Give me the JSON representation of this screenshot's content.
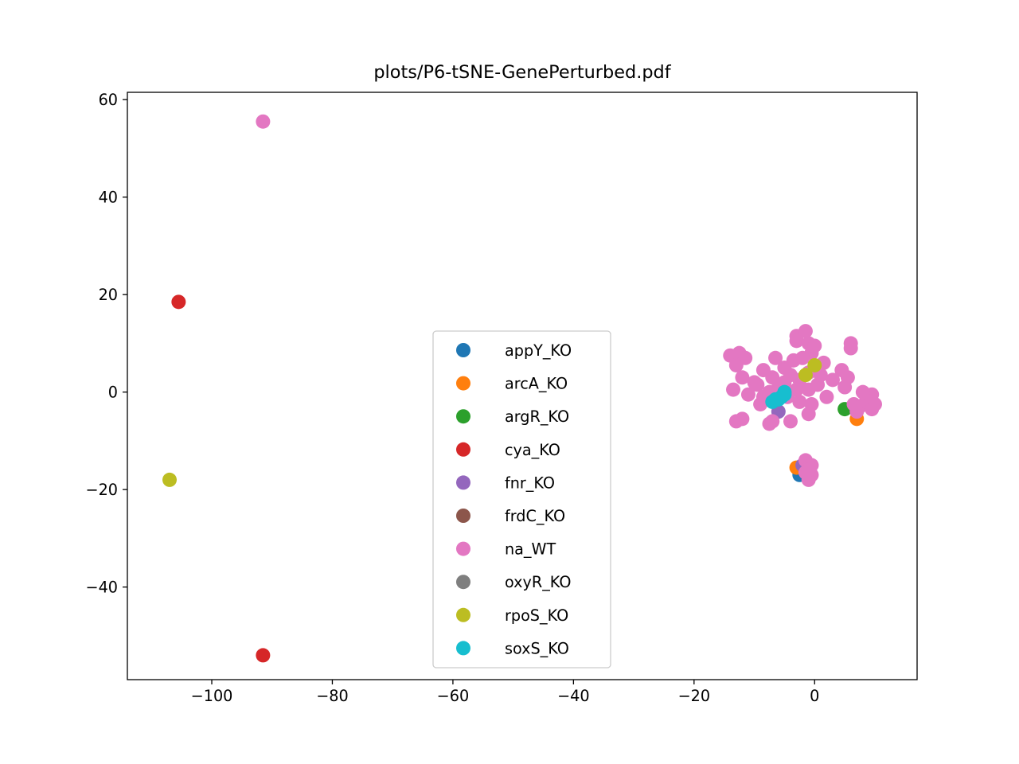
{
  "chart_data": {
    "type": "scatter",
    "title": "plots/P6-tSNE-GenePerturbed.pdf",
    "xlabel": "",
    "ylabel": "",
    "xlim": [
      -114,
      17
    ],
    "ylim": [
      -59,
      61.5
    ],
    "x_ticks": [
      -100,
      -80,
      -60,
      -40,
      -20,
      0
    ],
    "x_tick_labels": [
      "−100",
      "−80",
      "−60",
      "−40",
      "−20",
      "0"
    ],
    "y_ticks": [
      60,
      40,
      20,
      0,
      -20,
      -40
    ],
    "y_tick_labels": [
      "60",
      "40",
      "20",
      "0",
      "−20",
      "−40"
    ],
    "grid": false,
    "legend_position": "lower center",
    "series": [
      {
        "name": "appY_KO",
        "color": "#1f77b4",
        "points": [
          [
            -2.5,
            -17
          ],
          [
            -2,
            -16
          ]
        ]
      },
      {
        "name": "arcA_KO",
        "color": "#ff7f0e",
        "points": [
          [
            -3,
            -15.5
          ],
          [
            7,
            -5.5
          ]
        ]
      },
      {
        "name": "argR_KO",
        "color": "#2ca02c",
        "points": [
          [
            5,
            -3.5
          ]
        ]
      },
      {
        "name": "cya_KO",
        "color": "#d62728",
        "points": [
          [
            -105.5,
            18.5
          ],
          [
            -91.5,
            -54
          ]
        ]
      },
      {
        "name": "fnr_KO",
        "color": "#9467bd",
        "points": [
          [
            -6,
            -4
          ],
          [
            -2,
            -15
          ]
        ]
      },
      {
        "name": "frdC_KO",
        "color": "#8c564b",
        "points": []
      },
      {
        "name": "na_WT",
        "color": "#e377c2",
        "points": [
          [
            -91.5,
            55.5
          ],
          [
            -14,
            7.5
          ],
          [
            -12.5,
            8
          ],
          [
            -11.5,
            7
          ],
          [
            -13,
            5.5
          ],
          [
            -12,
            3
          ],
          [
            -13.5,
            0.5
          ],
          [
            -11,
            -0.5
          ],
          [
            -10,
            2
          ],
          [
            -12,
            -5.5
          ],
          [
            -13,
            -6
          ],
          [
            -9.5,
            1.5
          ],
          [
            -8.5,
            4.5
          ],
          [
            -8.5,
            -1
          ],
          [
            -7.5,
            0
          ],
          [
            -7,
            3
          ],
          [
            -6.5,
            7
          ],
          [
            -7.5,
            -6.5
          ],
          [
            -7,
            -6
          ],
          [
            -5,
            5
          ],
          [
            -5,
            2
          ],
          [
            -4.5,
            -1
          ],
          [
            -4,
            3.5
          ],
          [
            -3.5,
            6.5
          ],
          [
            -3,
            11.5
          ],
          [
            -3,
            10.5
          ],
          [
            -2.5,
            2.5
          ],
          [
            -2.5,
            -2
          ],
          [
            -1.5,
            12.5
          ],
          [
            -1,
            10
          ],
          [
            -0.5,
            8
          ],
          [
            0,
            9.5
          ],
          [
            -1,
            4
          ],
          [
            -1,
            0.5
          ],
          [
            -0.5,
            -2.5
          ],
          [
            -1,
            -4.5
          ],
          [
            0.5,
            1.5
          ],
          [
            1,
            3.5
          ],
          [
            1.5,
            6
          ],
          [
            2,
            -1
          ],
          [
            3,
            2.5
          ],
          [
            4.5,
            4.5
          ],
          [
            5,
            1
          ],
          [
            5.5,
            3
          ],
          [
            6,
            10
          ],
          [
            6,
            9
          ],
          [
            6.5,
            -2.5
          ],
          [
            7,
            -4
          ],
          [
            7.5,
            -3
          ],
          [
            8.5,
            -2
          ],
          [
            9,
            -1.5
          ],
          [
            9.5,
            -3.5
          ],
          [
            9.5,
            -0.5
          ],
          [
            10,
            -2.5
          ],
          [
            8,
            0
          ],
          [
            -3,
            0.5
          ],
          [
            -6,
            1
          ],
          [
            -2,
            7
          ],
          [
            -4,
            -6
          ],
          [
            -9,
            -2.5
          ],
          [
            -1.5,
            -14
          ],
          [
            -1,
            -15.5
          ],
          [
            -0.5,
            -17
          ],
          [
            -1,
            -18
          ],
          [
            -1.5,
            -16.5
          ],
          [
            -0.5,
            -15
          ],
          [
            -1,
            -16
          ]
        ]
      },
      {
        "name": "oxyR_KO",
        "color": "#7f7f7f",
        "points": []
      },
      {
        "name": "rpoS_KO",
        "color": "#bcbd22",
        "points": [
          [
            -107,
            -18
          ],
          [
            0,
            5.5
          ],
          [
            -1.5,
            3.5
          ]
        ]
      },
      {
        "name": "soxS_KO",
        "color": "#17becf",
        "points": [
          [
            -7,
            -2
          ],
          [
            -6.5,
            -1.5
          ],
          [
            -6,
            -1.5
          ],
          [
            -5.5,
            -1
          ],
          [
            -5,
            -0.5
          ],
          [
            -5,
            0
          ]
        ]
      }
    ]
  }
}
